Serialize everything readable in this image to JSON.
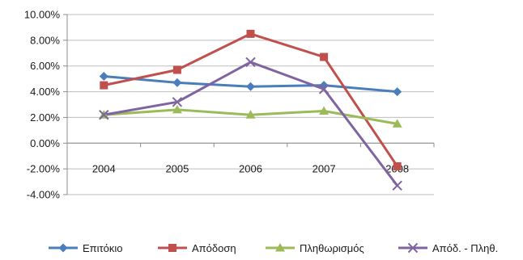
{
  "chart_data": {
    "type": "line",
    "categories": [
      "2004",
      "2005",
      "2006",
      "2007",
      "2008"
    ],
    "ylim": [
      -0.04,
      0.1
    ],
    "y_ticks": [
      0.1,
      0.08,
      0.06,
      0.04,
      0.02,
      0.0,
      -0.02,
      -0.04
    ],
    "y_tick_labels": [
      "10.00%",
      "8.00%",
      "6.00%",
      "4.00%",
      "2.00%",
      "0.00%",
      "-2.00%",
      "-4.00%"
    ],
    "grid": "horizontal",
    "legend_position": "bottom",
    "series": [
      {
        "name": "Επιτόκιο",
        "color": "#4a7ebb",
        "marker": "diamond",
        "values": [
          0.052,
          0.047,
          0.044,
          0.045,
          0.04
        ]
      },
      {
        "name": "Απόδοση",
        "color": "#c0504d",
        "marker": "square",
        "values": [
          0.045,
          0.057,
          0.085,
          0.067,
          -0.018
        ]
      },
      {
        "name": "Πληθωρισμός",
        "color": "#9bbb59",
        "marker": "triangle",
        "values": [
          0.022,
          0.026,
          0.022,
          0.025,
          0.015
        ]
      },
      {
        "name": "Απόδ. - Πληθ.",
        "color": "#8064a2",
        "marker": "x",
        "values": [
          0.022,
          0.032,
          0.063,
          0.042,
          -0.033
        ]
      }
    ]
  }
}
